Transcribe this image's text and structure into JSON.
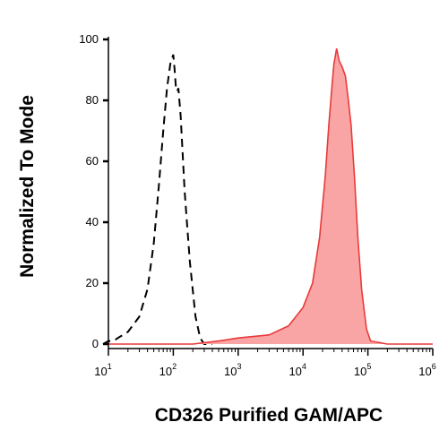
{
  "chart_data": {
    "type": "area",
    "title": "",
    "xlabel": "CD326 Purified GAM/APC",
    "ylabel": "Normalized To Mode",
    "x_scale": "log",
    "xlim": [
      10,
      1000000
    ],
    "ylim": [
      0,
      100
    ],
    "x_ticks": [
      {
        "base": "10",
        "exp": "1",
        "value": 10
      },
      {
        "base": "10",
        "exp": "2",
        "value": 100
      },
      {
        "base": "10",
        "exp": "3",
        "value": 1000
      },
      {
        "base": "10",
        "exp": "4",
        "value": 10000
      },
      {
        "base": "10",
        "exp": "5",
        "value": 100000
      },
      {
        "base": "10",
        "exp": "6",
        "value": 1000000
      }
    ],
    "y_ticks": [
      "0",
      "20",
      "40",
      "60",
      "80",
      "100"
    ],
    "series": [
      {
        "style": "dashed-outline",
        "color": "#000000",
        "points": [
          [
            5,
            0
          ],
          [
            8,
            0
          ],
          [
            10,
            1
          ],
          [
            12,
            1
          ],
          [
            14,
            2
          ],
          [
            20,
            4
          ],
          [
            30,
            9
          ],
          [
            40,
            18
          ],
          [
            50,
            33
          ],
          [
            60,
            52
          ],
          [
            70,
            70
          ],
          [
            80,
            84
          ],
          [
            90,
            92
          ],
          [
            100,
            95
          ],
          [
            105,
            90
          ],
          [
            110,
            84
          ],
          [
            115,
            83
          ],
          [
            120,
            84
          ],
          [
            130,
            75
          ],
          [
            150,
            50
          ],
          [
            180,
            27
          ],
          [
            220,
            9
          ],
          [
            260,
            2
          ],
          [
            300,
            0
          ],
          [
            400,
            0
          ]
        ]
      },
      {
        "style": "filled",
        "color": "#e83a3a",
        "fill": "#f9a5a5",
        "points": [
          [
            10,
            0
          ],
          [
            200,
            0
          ],
          [
            500,
            1
          ],
          [
            1000,
            2
          ],
          [
            3000,
            3
          ],
          [
            6000,
            6
          ],
          [
            10000,
            12
          ],
          [
            14000,
            20
          ],
          [
            18000,
            35
          ],
          [
            22000,
            55
          ],
          [
            25000,
            72
          ],
          [
            28000,
            85
          ],
          [
            30000,
            92
          ],
          [
            33000,
            97
          ],
          [
            36000,
            93
          ],
          [
            40000,
            91
          ],
          [
            45000,
            88
          ],
          [
            50000,
            80
          ],
          [
            55000,
            72
          ],
          [
            62000,
            55
          ],
          [
            70000,
            35
          ],
          [
            80000,
            18
          ],
          [
            95000,
            5
          ],
          [
            110000,
            1
          ],
          [
            200000,
            0
          ],
          [
            1000000,
            0
          ]
        ]
      }
    ]
  }
}
